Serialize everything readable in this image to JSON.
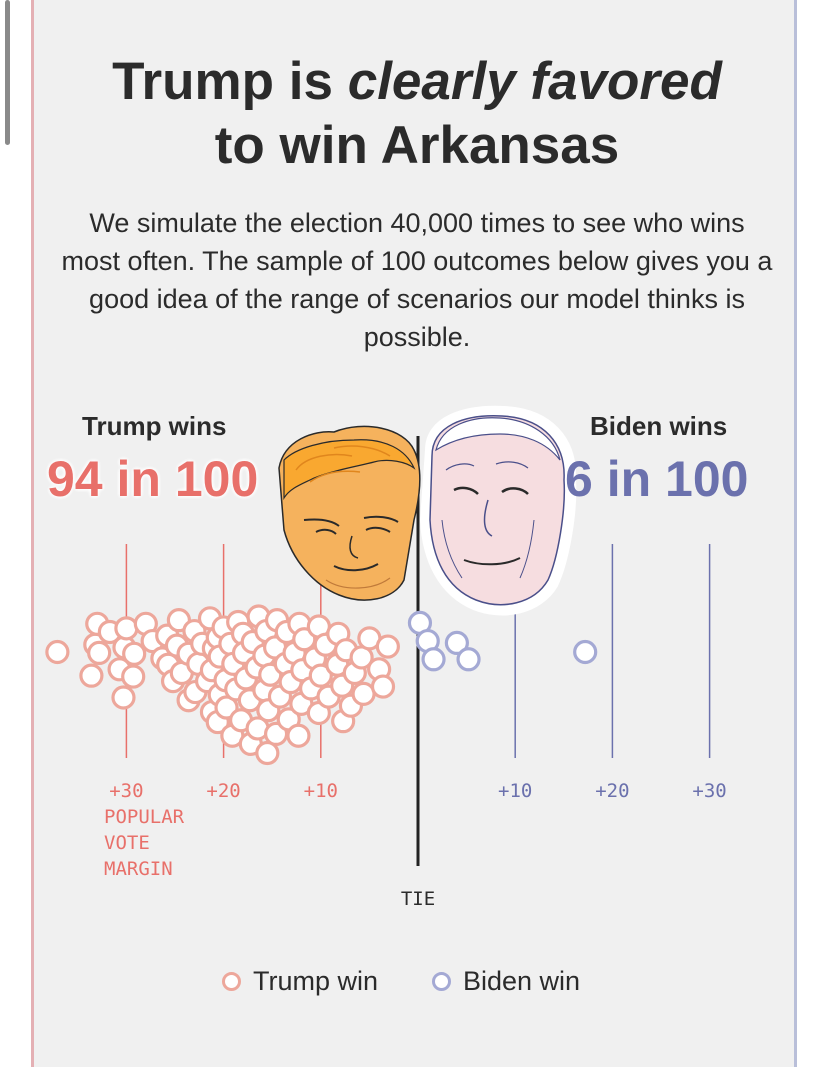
{
  "headline": {
    "part1": "Trump is ",
    "emphasis": "clearly favored",
    "part2": "to win Arkansas"
  },
  "description": "We simulate the election 40,000 times to see who wins most often. The sample of 100 outcomes below gives you a good idea of the range of scenarios our model thinks is possible.",
  "trump": {
    "label": "Trump wins",
    "count": "94 in 100",
    "color": "#e8706a",
    "dot_color": "#eda79b"
  },
  "biden": {
    "label": "Biden wins",
    "count": "6 in 100",
    "color": "#6b71ad",
    "dot_color": "#a4a9d4"
  },
  "legend": {
    "trump": "Trump win",
    "biden": "Biden win"
  },
  "chart_data": {
    "type": "scatter",
    "title": "",
    "x_axis": {
      "label_lines": [
        "POPULAR",
        "VOTE",
        "MARGIN"
      ],
      "center_label": "TIE",
      "range": [
        -37,
        37
      ],
      "ticks": [
        {
          "value": -30,
          "label": "+30"
        },
        {
          "value": -20,
          "label": "+20"
        },
        {
          "value": -10,
          "label": "+10"
        },
        {
          "value": 10,
          "label": "+10"
        },
        {
          "value": 20,
          "label": "+20"
        },
        {
          "value": 30,
          "label": "+30"
        }
      ]
    },
    "series": [
      {
        "name": "Trump win",
        "points": [
          [
            -37.1,
            0
          ],
          [
            -33.6,
            -2.6
          ],
          [
            -33.2,
            0.8
          ],
          [
            -33.0,
            3.1
          ],
          [
            -32.8,
            -0.1
          ],
          [
            -31.7,
            2.2
          ],
          [
            -30.7,
            -1.9
          ],
          [
            -30.3,
            -5.0
          ],
          [
            -30.2,
            0.5
          ],
          [
            -30.0,
            2.6
          ],
          [
            -29.3,
            -2.7
          ],
          [
            -29.2,
            -0.2
          ],
          [
            -28.0,
            3.1
          ],
          [
            -27.3,
            1.2
          ],
          [
            -26.3,
            -0.7
          ],
          [
            -25.8,
            1.8
          ],
          [
            -25.7,
            -1.4
          ],
          [
            -25.2,
            -3.2
          ],
          [
            -24.8,
            0.7
          ],
          [
            -24.6,
            3.5
          ],
          [
            -24.3,
            -2.3
          ],
          [
            -23.6,
            -5.3
          ],
          [
            -23.6,
            -0.2
          ],
          [
            -23.0,
            2.3
          ],
          [
            -22.9,
            -4.4
          ],
          [
            -22.6,
            -1.3
          ],
          [
            -22.2,
            0.9
          ],
          [
            -21.7,
            -3.2
          ],
          [
            -21.4,
            3.7
          ],
          [
            -21.2,
            -6.6
          ],
          [
            -21.2,
            -2.0
          ],
          [
            -21.0,
            0.4
          ],
          [
            -20.6,
            -7.7
          ],
          [
            -20.6,
            1.6
          ],
          [
            -20.4,
            -4.7
          ],
          [
            -20.4,
            -0.5
          ],
          [
            -20.0,
            2.7
          ],
          [
            -19.8,
            -3.1
          ],
          [
            -19.7,
            -6.1
          ],
          [
            -19.3,
            0.9
          ],
          [
            -19.1,
            -9.2
          ],
          [
            -19.0,
            -1.3
          ],
          [
            -18.7,
            -4.1
          ],
          [
            -18.5,
            3.3
          ],
          [
            -18.2,
            -7.5
          ],
          [
            -18.0,
            2.0
          ],
          [
            -17.9,
            -0.1
          ],
          [
            -17.7,
            -2.9
          ],
          [
            -17.3,
            -5.3
          ],
          [
            -17.2,
            -10.1
          ],
          [
            -17.0,
            1.1
          ],
          [
            -16.6,
            -1.7
          ],
          [
            -16.5,
            -8.4
          ],
          [
            -16.4,
            3.9
          ],
          [
            -15.8,
            -4.2
          ],
          [
            -15.8,
            -0.4
          ],
          [
            -15.6,
            2.3
          ],
          [
            -15.5,
            -11.1
          ],
          [
            -15.4,
            -6.4
          ],
          [
            -15.2,
            -2.5
          ],
          [
            -14.7,
            0.5
          ],
          [
            -14.6,
            -9.0
          ],
          [
            -14.5,
            3.5
          ],
          [
            -14.2,
            -4.9
          ],
          [
            -13.6,
            -1.3
          ],
          [
            -13.5,
            2.2
          ],
          [
            -13.3,
            -7.4
          ],
          [
            -13.1,
            -3.3
          ],
          [
            -12.7,
            -0.1
          ],
          [
            -12.3,
            -9.2
          ],
          [
            -12.2,
            3.1
          ],
          [
            -12.0,
            -5.7
          ],
          [
            -11.9,
            -2.0
          ],
          [
            -11.7,
            1.4
          ],
          [
            -11.0,
            -4.0
          ],
          [
            -10.6,
            -0.7
          ],
          [
            -10.2,
            2.8
          ],
          [
            -10.2,
            -6.7
          ],
          [
            -10.0,
            -2.6
          ],
          [
            -9.5,
            0.8
          ],
          [
            -9.2,
            -4.9
          ],
          [
            -8.3,
            -1.4
          ],
          [
            -8.2,
            2.0
          ],
          [
            -7.8,
            -3.7
          ],
          [
            -7.7,
            -7.6
          ],
          [
            -7.4,
            0.2
          ],
          [
            -6.9,
            -5.9
          ],
          [
            -6.5,
            -2.3
          ],
          [
            -5.8,
            -0.6
          ],
          [
            -5.6,
            -4.6
          ],
          [
            -5.0,
            1.5
          ],
          [
            -4.0,
            -1.9
          ],
          [
            -3.6,
            -3.8
          ],
          [
            -3.1,
            0.6
          ]
        ]
      },
      {
        "name": "Biden win",
        "points": [
          [
            0.2,
            3.2
          ],
          [
            1.0,
            1.2
          ],
          [
            1.6,
            -0.8
          ],
          [
            4.0,
            1.0
          ],
          [
            5.2,
            -0.8
          ],
          [
            17.2,
            0
          ]
        ]
      }
    ]
  }
}
